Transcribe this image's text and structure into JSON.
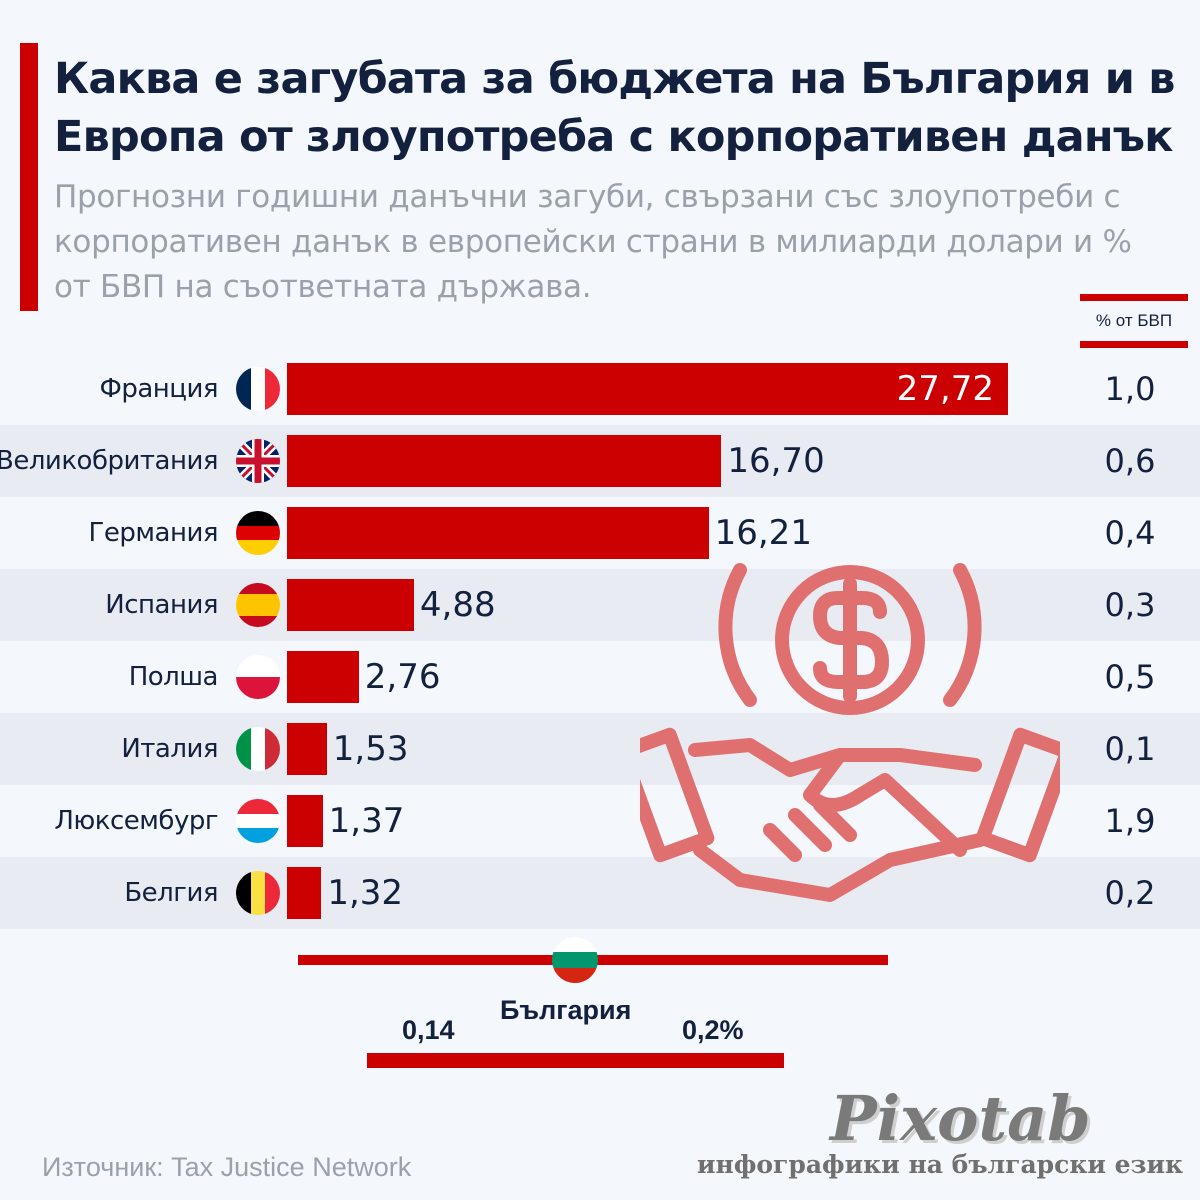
{
  "header": {
    "title": "Каква е загубата за бюджета на България и в Европа от злоупотреба с корпоративен данък",
    "subtitle": "Прогнозни годишни данъчни загуби, свързани със злоупотреби с корпоративен данък в европейски страни в милиарди долари и % от БВП на съответната държава."
  },
  "colors": {
    "accent": "#cc0000",
    "text": "#13213f",
    "muted": "#9aa1aa",
    "illustration": "#e07070"
  },
  "chart_data": {
    "type": "bar",
    "orientation": "horizontal",
    "unit": "милиарди долари",
    "pct_header": "% от БВП",
    "categories": [
      "Франция",
      "Великобритания",
      "Германия",
      "Испания",
      "Полша",
      "Италия",
      "Люксембург",
      "Белгия"
    ],
    "flags": [
      "france-flag",
      "uk-flag",
      "germany-flag",
      "spain-flag",
      "poland-flag",
      "italy-flag",
      "luxembourg-flag",
      "belgium-flag"
    ],
    "values": [
      27.72,
      16.7,
      16.21,
      4.88,
      2.76,
      1.53,
      1.37,
      1.32
    ],
    "value_labels": [
      "27,72",
      "16,70",
      "16,21",
      "4,88",
      "2,76",
      "1,53",
      "1,37",
      "1,32"
    ],
    "pct_labels": [
      "1,0",
      "0,6",
      "0,4",
      "0,3",
      "0,5",
      "0,1",
      "1,9",
      "0,2"
    ],
    "bar_color": "#cc0000"
  },
  "bulgaria": {
    "name": "България",
    "value": "0,14",
    "pct": "0,2%"
  },
  "footer": {
    "source": "Източник: Tax Justice Network",
    "logo": "Pixotab",
    "tagline": "инфографики на български език"
  }
}
